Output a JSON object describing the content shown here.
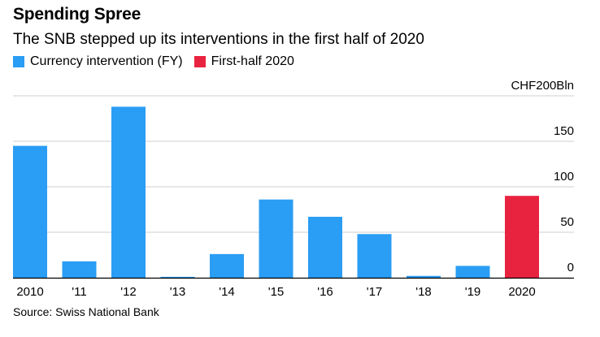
{
  "title": "Spending Spree",
  "subtitle": "The SNB stepped up its interventions in the first half of 2020",
  "legend": [
    {
      "label": "Currency intervention (FY)",
      "color": "#2a9df4"
    },
    {
      "label": "First-half 2020",
      "color": "#e8233f"
    }
  ],
  "source": "Source: Swiss National Bank",
  "chart_data": {
    "type": "bar",
    "title": "Spending Spree",
    "subtitle": "The SNB stepped up its interventions in the first half of 2020",
    "unit_label": "CHF200Bln",
    "categories": [
      "2010",
      "'11",
      "'12",
      "'13",
      "'14",
      "'15",
      "'16",
      "'17",
      "'18",
      "'19",
      "2020"
    ],
    "series": [
      {
        "name": "Currency intervention (FY)",
        "color": "#2a9df4",
        "values": [
          145,
          18,
          188,
          1,
          26,
          86,
          67,
          48,
          2,
          13,
          null
        ]
      },
      {
        "name": "First-half 2020",
        "color": "#e8233f",
        "values": [
          null,
          null,
          null,
          null,
          null,
          null,
          null,
          null,
          null,
          null,
          90
        ]
      }
    ],
    "yticks": [
      0,
      50,
      100,
      150,
      200
    ],
    "ylim": [
      0,
      200
    ],
    "grid": true,
    "legend_position": "top-left"
  }
}
